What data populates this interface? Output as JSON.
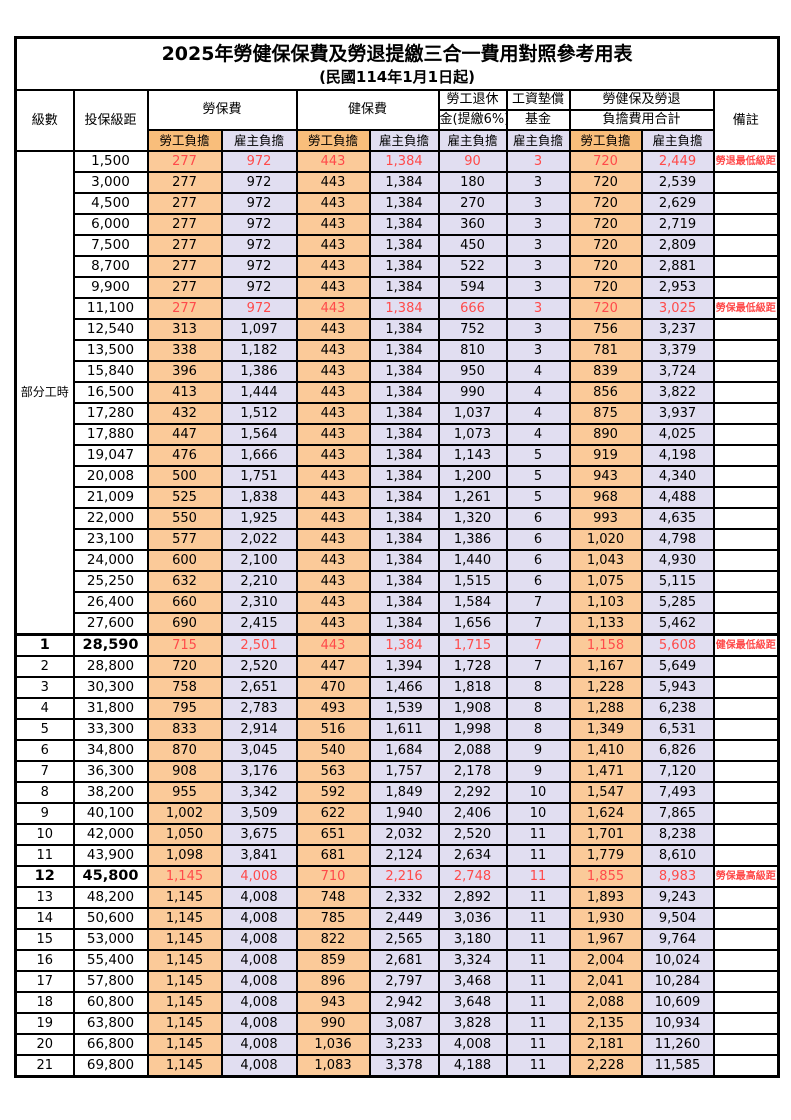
{
  "title": "2025年勞健保保費及勞退提繳三合一費用對照參考用表",
  "subtitle": "(民國114年1月1日起)",
  "header": {
    "level": "級數",
    "salary": "投保級距",
    "labor": "勞保費",
    "health": "健保費",
    "pension_l1": "勞工退休",
    "pension_l2": "金(提繳6%)",
    "fund_l1": "工資墊償",
    "fund_l2": "基金",
    "total_l1": "勞健保及勞退",
    "total_l2": "負擔費用合計",
    "remark": "備註",
    "employee": "勞工負擔",
    "employer": "雇主負擔"
  },
  "part_time_label": "部分工時",
  "part_time_rowspan": 23,
  "row_format": [
    "level",
    "insured_salary",
    "labor_employee",
    "labor_employer",
    "health_employee",
    "health_employer",
    "pension_employer",
    "fund_employer",
    "total_employee",
    "total_employer",
    "remark",
    "flag(0=normal,1=red,2=red+bold)"
  ],
  "rows": [
    [
      "",
      "1,500",
      "277",
      "972",
      "443",
      "1,384",
      "90",
      "3",
      "720",
      "2,449",
      "勞退最低級距",
      1
    ],
    [
      "",
      "3,000",
      "277",
      "972",
      "443",
      "1,384",
      "180",
      "3",
      "720",
      "2,539",
      "",
      0
    ],
    [
      "",
      "4,500",
      "277",
      "972",
      "443",
      "1,384",
      "270",
      "3",
      "720",
      "2,629",
      "",
      0
    ],
    [
      "",
      "6,000",
      "277",
      "972",
      "443",
      "1,384",
      "360",
      "3",
      "720",
      "2,719",
      "",
      0
    ],
    [
      "",
      "7,500",
      "277",
      "972",
      "443",
      "1,384",
      "450",
      "3",
      "720",
      "2,809",
      "",
      0
    ],
    [
      "",
      "8,700",
      "277",
      "972",
      "443",
      "1,384",
      "522",
      "3",
      "720",
      "2,881",
      "",
      0
    ],
    [
      "",
      "9,900",
      "277",
      "972",
      "443",
      "1,384",
      "594",
      "3",
      "720",
      "2,953",
      "",
      0
    ],
    [
      "",
      "11,100",
      "277",
      "972",
      "443",
      "1,384",
      "666",
      "3",
      "720",
      "3,025",
      "勞保最低級距",
      1
    ],
    [
      "",
      "12,540",
      "313",
      "1,097",
      "443",
      "1,384",
      "752",
      "3",
      "756",
      "3,237",
      "",
      0
    ],
    [
      "",
      "13,500",
      "338",
      "1,182",
      "443",
      "1,384",
      "810",
      "3",
      "781",
      "3,379",
      "",
      0
    ],
    [
      "",
      "15,840",
      "396",
      "1,386",
      "443",
      "1,384",
      "950",
      "4",
      "839",
      "3,724",
      "",
      0
    ],
    [
      "",
      "16,500",
      "413",
      "1,444",
      "443",
      "1,384",
      "990",
      "4",
      "856",
      "3,822",
      "",
      0
    ],
    [
      "",
      "17,280",
      "432",
      "1,512",
      "443",
      "1,384",
      "1,037",
      "4",
      "875",
      "3,937",
      "",
      0
    ],
    [
      "",
      "17,880",
      "447",
      "1,564",
      "443",
      "1,384",
      "1,073",
      "4",
      "890",
      "4,025",
      "",
      0
    ],
    [
      "",
      "19,047",
      "476",
      "1,666",
      "443",
      "1,384",
      "1,143",
      "5",
      "919",
      "4,198",
      "",
      0
    ],
    [
      "",
      "20,008",
      "500",
      "1,751",
      "443",
      "1,384",
      "1,200",
      "5",
      "943",
      "4,340",
      "",
      0
    ],
    [
      "",
      "21,009",
      "525",
      "1,838",
      "443",
      "1,384",
      "1,261",
      "5",
      "968",
      "4,488",
      "",
      0
    ],
    [
      "",
      "22,000",
      "550",
      "1,925",
      "443",
      "1,384",
      "1,320",
      "6",
      "993",
      "4,635",
      "",
      0
    ],
    [
      "",
      "23,100",
      "577",
      "2,022",
      "443",
      "1,384",
      "1,386",
      "6",
      "1,020",
      "4,798",
      "",
      0
    ],
    [
      "",
      "24,000",
      "600",
      "2,100",
      "443",
      "1,384",
      "1,440",
      "6",
      "1,043",
      "4,930",
      "",
      0
    ],
    [
      "",
      "25,250",
      "632",
      "2,210",
      "443",
      "1,384",
      "1,515",
      "6",
      "1,075",
      "5,115",
      "",
      0
    ],
    [
      "",
      "26,400",
      "660",
      "2,310",
      "443",
      "1,384",
      "1,584",
      "7",
      "1,103",
      "5,285",
      "",
      0
    ],
    [
      "",
      "27,600",
      "690",
      "2,415",
      "443",
      "1,384",
      "1,656",
      "7",
      "1,133",
      "5,462",
      "",
      0
    ],
    [
      "1",
      "28,590",
      "715",
      "2,501",
      "443",
      "1,384",
      "1,715",
      "7",
      "1,158",
      "5,608",
      "健保最低級距",
      2
    ],
    [
      "2",
      "28,800",
      "720",
      "2,520",
      "447",
      "1,394",
      "1,728",
      "7",
      "1,167",
      "5,649",
      "",
      0
    ],
    [
      "3",
      "30,300",
      "758",
      "2,651",
      "470",
      "1,466",
      "1,818",
      "8",
      "1,228",
      "5,943",
      "",
      0
    ],
    [
      "4",
      "31,800",
      "795",
      "2,783",
      "493",
      "1,539",
      "1,908",
      "8",
      "1,288",
      "6,238",
      "",
      0
    ],
    [
      "5",
      "33,300",
      "833",
      "2,914",
      "516",
      "1,611",
      "1,998",
      "8",
      "1,349",
      "6,531",
      "",
      0
    ],
    [
      "6",
      "34,800",
      "870",
      "3,045",
      "540",
      "1,684",
      "2,088",
      "9",
      "1,410",
      "6,826",
      "",
      0
    ],
    [
      "7",
      "36,300",
      "908",
      "3,176",
      "563",
      "1,757",
      "2,178",
      "9",
      "1,471",
      "7,120",
      "",
      0
    ],
    [
      "8",
      "38,200",
      "955",
      "3,342",
      "592",
      "1,849",
      "2,292",
      "10",
      "1,547",
      "7,493",
      "",
      0
    ],
    [
      "9",
      "40,100",
      "1,002",
      "3,509",
      "622",
      "1,940",
      "2,406",
      "10",
      "1,624",
      "7,865",
      "",
      0
    ],
    [
      "10",
      "42,000",
      "1,050",
      "3,675",
      "651",
      "2,032",
      "2,520",
      "11",
      "1,701",
      "8,238",
      "",
      0
    ],
    [
      "11",
      "43,900",
      "1,098",
      "3,841",
      "681",
      "2,124",
      "2,634",
      "11",
      "1,779",
      "8,610",
      "",
      0
    ],
    [
      "12",
      "45,800",
      "1,145",
      "4,008",
      "710",
      "2,216",
      "2,748",
      "11",
      "1,855",
      "8,983",
      "勞保最高級距",
      2
    ],
    [
      "13",
      "48,200",
      "1,145",
      "4,008",
      "748",
      "2,332",
      "2,892",
      "11",
      "1,893",
      "9,243",
      "",
      0
    ],
    [
      "14",
      "50,600",
      "1,145",
      "4,008",
      "785",
      "2,449",
      "3,036",
      "11",
      "1,930",
      "9,504",
      "",
      0
    ],
    [
      "15",
      "53,000",
      "1,145",
      "4,008",
      "822",
      "2,565",
      "3,180",
      "11",
      "1,967",
      "9,764",
      "",
      0
    ],
    [
      "16",
      "55,400",
      "1,145",
      "4,008",
      "859",
      "2,681",
      "3,324",
      "11",
      "2,004",
      "10,024",
      "",
      0
    ],
    [
      "17",
      "57,800",
      "1,145",
      "4,008",
      "896",
      "2,797",
      "3,468",
      "11",
      "2,041",
      "10,284",
      "",
      0
    ],
    [
      "18",
      "60,800",
      "1,145",
      "4,008",
      "943",
      "2,942",
      "3,648",
      "11",
      "2,088",
      "10,609",
      "",
      0
    ],
    [
      "19",
      "63,800",
      "1,145",
      "4,008",
      "990",
      "3,087",
      "3,828",
      "11",
      "2,135",
      "10,934",
      "",
      0
    ],
    [
      "20",
      "66,800",
      "1,145",
      "4,008",
      "1,036",
      "3,233",
      "4,008",
      "11",
      "2,181",
      "11,260",
      "",
      0
    ],
    [
      "21",
      "69,800",
      "1,145",
      "4,008",
      "1,083",
      "3,378",
      "4,188",
      "11",
      "2,228",
      "11,585",
      "",
      0
    ]
  ],
  "colors": {
    "employee_bg": "#FBCA99",
    "employer_bg": "#E1DEF1",
    "header_employee_bg": "#F9BE7B",
    "header_employer_bg": "#E1DEF1",
    "highlight_text": "#FF4A4A",
    "remark_text": "#FF4A4A",
    "border": "#000000",
    "background": "#FFFFFF"
  }
}
